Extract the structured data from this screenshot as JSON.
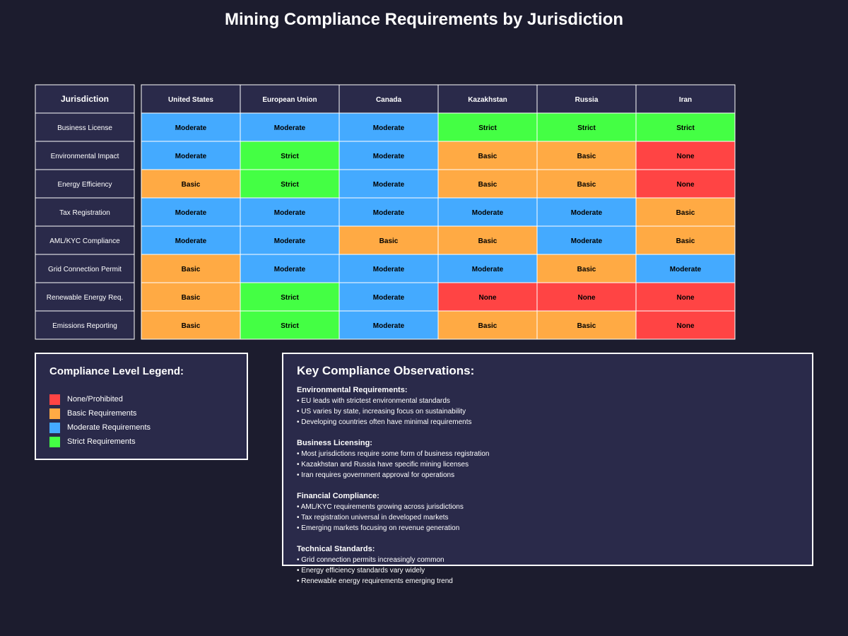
{
  "title": "Mining Compliance Requirements by Jurisdiction",
  "chart_data": {
    "type": "heatmap",
    "title": "Mining Compliance Requirements by Jurisdiction",
    "corner_label": "Jurisdiction",
    "columns": [
      "United States",
      "European Union",
      "Canada",
      "Kazakhstan",
      "Russia",
      "Iran"
    ],
    "rows": [
      {
        "label": "Business License",
        "values": [
          "Moderate",
          "Moderate",
          "Moderate",
          "Strict",
          "Strict",
          "Strict"
        ]
      },
      {
        "label": "Environmental Impact",
        "values": [
          "Moderate",
          "Strict",
          "Moderate",
          "Basic",
          "Basic",
          "None"
        ]
      },
      {
        "label": "Energy Efficiency",
        "values": [
          "Basic",
          "Strict",
          "Moderate",
          "Basic",
          "Basic",
          "None"
        ]
      },
      {
        "label": "Tax Registration",
        "values": [
          "Moderate",
          "Moderate",
          "Moderate",
          "Moderate",
          "Moderate",
          "Basic"
        ]
      },
      {
        "label": "AML/KYC Compliance",
        "values": [
          "Moderate",
          "Moderate",
          "Basic",
          "Basic",
          "Moderate",
          "Basic"
        ]
      },
      {
        "label": "Grid Connection Permit",
        "values": [
          "Basic",
          "Moderate",
          "Moderate",
          "Moderate",
          "Basic",
          "Moderate"
        ]
      },
      {
        "label": "Renewable Energy Req.",
        "values": [
          "Basic",
          "Strict",
          "Moderate",
          "None",
          "None",
          "None"
        ]
      },
      {
        "label": "Emissions Reporting",
        "values": [
          "Basic",
          "Strict",
          "Moderate",
          "Basic",
          "Basic",
          "None"
        ]
      }
    ],
    "level_colors": {
      "None": "#ff4444",
      "Basic": "#ffaa44",
      "Moderate": "#44aaff",
      "Strict": "#44ff44"
    }
  },
  "legend": {
    "title": "Compliance Level Legend:",
    "items": [
      {
        "label": "None/Prohibited",
        "color": "#ff4444"
      },
      {
        "label": "Basic Requirements",
        "color": "#ffaa44"
      },
      {
        "label": "Moderate Requirements",
        "color": "#44aaff"
      },
      {
        "label": "Strict Requirements",
        "color": "#44ff44"
      }
    ]
  },
  "observations": {
    "title": "Key Compliance Observations:",
    "sections": [
      {
        "heading": "Environmental Requirements:",
        "bullets": [
          "• EU leads with strictest environmental standards",
          "• US varies by state, increasing focus on sustainability",
          "• Developing countries often have minimal requirements"
        ]
      },
      {
        "heading": "Business Licensing:",
        "bullets": [
          "• Most jurisdictions require some form of business registration",
          "• Kazakhstan and Russia have specific mining licenses",
          "• Iran requires government approval for operations"
        ]
      },
      {
        "heading": "Financial Compliance:",
        "bullets": [
          "• AML/KYC requirements growing across jurisdictions",
          "• Tax registration universal in developed markets",
          "• Emerging markets focusing on revenue generation"
        ]
      },
      {
        "heading": "Technical Standards:",
        "bullets": [
          "• Grid connection permits increasingly common",
          "• Energy efficiency standards vary widely",
          "• Renewable energy requirements emerging trend"
        ]
      }
    ]
  }
}
